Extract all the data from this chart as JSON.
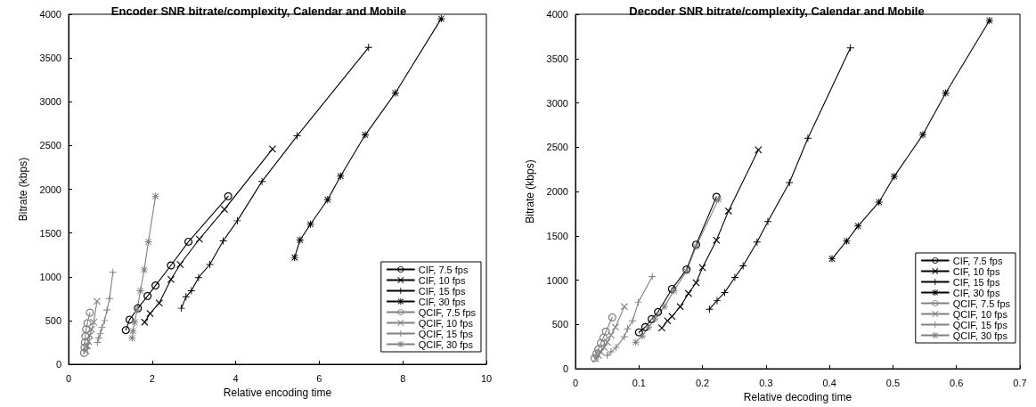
{
  "chart_data": [
    {
      "type": "line",
      "title": "Encoder SNR bitrate/complexity, Calendar and Mobile",
      "xlabel": "Relative encoding time",
      "ylabel": "Bitrate (kbps)",
      "xlim": [
        0,
        10
      ],
      "xticks": [
        0,
        2,
        4,
        6,
        8,
        10
      ],
      "ylim": [
        0,
        4000
      ],
      "yticks": [
        0,
        500,
        1000,
        1500,
        2000,
        2500,
        3000,
        3500,
        4000
      ],
      "grid": false,
      "legend": "bottom right",
      "line_style": "solid",
      "series": [
        {
          "name": "CIF, 7.5 fps",
          "color": "#000000",
          "marker": "circle",
          "x": [
            1.37,
            1.46,
            1.66,
            1.89,
            2.08,
            2.45,
            2.87,
            3.82
          ],
          "values": [
            390,
            510,
            640,
            780,
            900,
            1130,
            1400,
            1920
          ]
        },
        {
          "name": "CIF, 10 fps",
          "color": "#000000",
          "marker": "cross",
          "x": [
            1.82,
            1.95,
            2.17,
            2.45,
            2.67,
            3.13,
            3.73,
            4.88
          ],
          "values": [
            480,
            580,
            700,
            970,
            1140,
            1430,
            1770,
            2460
          ]
        },
        {
          "name": "CIF, 15 fps",
          "color": "#000000",
          "marker": "plus",
          "x": [
            2.7,
            2.81,
            2.94,
            3.11,
            3.38,
            3.7,
            4.04,
            4.63,
            5.47,
            7.18
          ],
          "values": [
            640,
            770,
            840,
            990,
            1140,
            1410,
            1640,
            2090,
            2610,
            3620
          ]
        },
        {
          "name": "CIF, 30 fps",
          "color": "#000000",
          "marker": "star",
          "x": [
            5.41,
            5.54,
            5.79,
            6.2,
            6.51,
            7.1,
            7.82,
            8.92
          ],
          "values": [
            1220,
            1420,
            1600,
            1880,
            2150,
            2620,
            3100,
            3950
          ]
        },
        {
          "name": "QCIF, 7.5 fps",
          "color": "#808080",
          "marker": "circle",
          "x": [
            0.37,
            0.38,
            0.39,
            0.4,
            0.42,
            0.45,
            0.51
          ],
          "values": [
            130,
            190,
            250,
            320,
            400,
            470,
            590
          ]
        },
        {
          "name": "QCIF, 10 fps",
          "color": "#808080",
          "marker": "cross",
          "x": [
            0.42,
            0.45,
            0.48,
            0.51,
            0.55,
            0.6,
            0.68
          ],
          "values": [
            150,
            210,
            260,
            330,
            400,
            480,
            720
          ]
        },
        {
          "name": "QCIF, 15 fps",
          "color": "#808080",
          "marker": "plus",
          "x": [
            0.69,
            0.72,
            0.76,
            0.8,
            0.86,
            0.92,
            0.98,
            1.06
          ],
          "values": [
            250,
            300,
            350,
            420,
            500,
            620,
            750,
            1050
          ]
        },
        {
          "name": "QCIF, 30 fps",
          "color": "#808080",
          "marker": "star",
          "x": [
            1.52,
            1.54,
            1.58,
            1.64,
            1.72,
            1.81,
            1.91,
            2.08
          ],
          "values": [
            300,
            380,
            480,
            620,
            840,
            1080,
            1400,
            1920
          ]
        }
      ]
    },
    {
      "type": "line",
      "title": "Decoder SNR bitrate/complexity, Calendar and Mobile",
      "xlabel": "Relative decoding time",
      "ylabel": "Bitrate (kbps)",
      "xlim": [
        0,
        0.7
      ],
      "xticks": [
        0,
        0.1,
        0.2,
        0.3,
        0.4,
        0.5,
        0.6,
        0.7
      ],
      "ylim": [
        0,
        4000
      ],
      "yticks": [
        0,
        500,
        1000,
        1500,
        2000,
        2500,
        3000,
        3500,
        4000
      ],
      "grid": false,
      "legend": "bottom right",
      "line_style": "solid",
      "series": [
        {
          "name": "CIF, 7.5 fps",
          "color": "#000000",
          "marker": "circle",
          "x": [
            0.1,
            0.11,
            0.12,
            0.13,
            0.152,
            0.175,
            0.19,
            0.222
          ],
          "values": [
            410,
            470,
            560,
            640,
            900,
            1120,
            1400,
            1940
          ]
        },
        {
          "name": "CIF, 10 fps",
          "color": "#000000",
          "marker": "cross",
          "x": [
            0.136,
            0.145,
            0.152,
            0.165,
            0.178,
            0.19,
            0.2,
            0.222,
            0.241,
            0.288
          ],
          "values": [
            460,
            540,
            590,
            700,
            850,
            970,
            1140,
            1450,
            1780,
            2470
          ]
        },
        {
          "name": "CIF, 15 fps",
          "color": "#000000",
          "marker": "plus",
          "x": [
            0.211,
            0.223,
            0.235,
            0.251,
            0.264,
            0.286,
            0.303,
            0.337,
            0.366,
            0.433
          ],
          "values": [
            670,
            770,
            860,
            1030,
            1160,
            1430,
            1660,
            2100,
            2600,
            3620
          ]
        },
        {
          "name": "CIF, 30 fps",
          "color": "#000000",
          "marker": "star",
          "x": [
            0.404,
            0.427,
            0.445,
            0.478,
            0.502,
            0.547,
            0.583,
            0.652
          ],
          "values": [
            1240,
            1440,
            1610,
            1880,
            2170,
            2640,
            3110,
            3930
          ]
        },
        {
          "name": "QCIF, 7.5 fps",
          "color": "#808080",
          "marker": "circle",
          "x": [
            0.03,
            0.033,
            0.036,
            0.04,
            0.044,
            0.048,
            0.058
          ],
          "values": [
            120,
            170,
            220,
            290,
            350,
            420,
            580
          ]
        },
        {
          "name": "QCIF, 10 fps",
          "color": "#808080",
          "marker": "cross",
          "x": [
            0.032,
            0.036,
            0.04,
            0.045,
            0.05,
            0.056,
            0.063,
            0.077
          ],
          "values": [
            110,
            150,
            190,
            240,
            300,
            380,
            470,
            700
          ]
        },
        {
          "name": "QCIF, 15 fps",
          "color": "#808080",
          "marker": "plus",
          "x": [
            0.05,
            0.056,
            0.064,
            0.077,
            0.082,
            0.09,
            0.099,
            0.121
          ],
          "values": [
            150,
            190,
            240,
            360,
            450,
            540,
            750,
            1040
          ]
        },
        {
          "name": "QCIF, 30 fps",
          "color": "#808080",
          "marker": "star",
          "x": [
            0.095,
            0.105,
            0.115,
            0.125,
            0.14,
            0.155,
            0.175,
            0.19,
            0.225
          ],
          "values": [
            300,
            370,
            470,
            560,
            700,
            880,
            1100,
            1380,
            1910
          ]
        }
      ]
    }
  ]
}
